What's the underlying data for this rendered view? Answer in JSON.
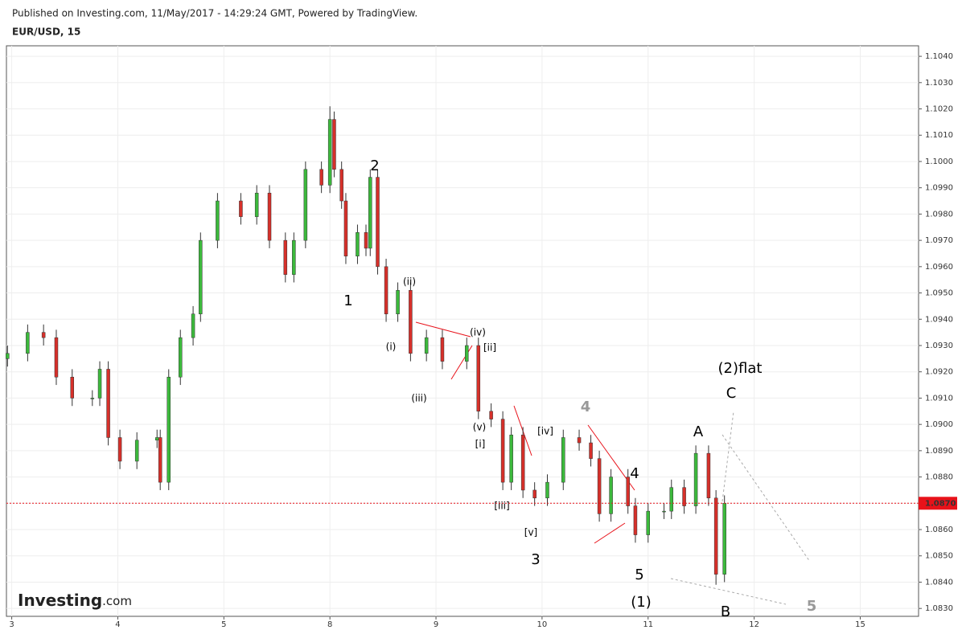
{
  "chart_data": {
    "type": "candlestick",
    "header": "Published on Investing.com, 11/May/2017 - 14:29:24 GMT, Powered by TradingView.",
    "title": "EUR/USD, 15",
    "logo": "Investing",
    "logo_suffix": ".com",
    "up_color": "#3cb93c",
    "down_color": "#d6302a",
    "wick_color": "#333333",
    "grid": true,
    "xlim": [
      -0.05,
      8.55
    ],
    "xticks": [
      {
        "value": 0,
        "label": "3"
      },
      {
        "value": 1,
        "label": "4"
      },
      {
        "value": 2,
        "label": "5"
      },
      {
        "value": 3,
        "label": "8"
      },
      {
        "value": 4,
        "label": "9"
      },
      {
        "value": 5,
        "label": "10"
      },
      {
        "value": 6,
        "label": "11"
      },
      {
        "value": 7,
        "label": "12"
      },
      {
        "value": 8,
        "label": "15"
      }
    ],
    "ylim": [
      1.0827,
      1.1044
    ],
    "yticks": [
      {
        "value": 1.083,
        "label": "1.0830"
      },
      {
        "value": 1.084,
        "label": "1.0840"
      },
      {
        "value": 1.085,
        "label": "1.0850"
      },
      {
        "value": 1.086,
        "label": "1.0860"
      },
      {
        "value": 1.087,
        "label": "1.0870"
      },
      {
        "value": 1.088,
        "label": "1.0880"
      },
      {
        "value": 1.089,
        "label": "1.0890"
      },
      {
        "value": 1.09,
        "label": "1.0900"
      },
      {
        "value": 1.091,
        "label": "1.0910"
      },
      {
        "value": 1.092,
        "label": "1.0920"
      },
      {
        "value": 1.093,
        "label": "1.0930"
      },
      {
        "value": 1.094,
        "label": "1.0940"
      },
      {
        "value": 1.095,
        "label": "1.0950"
      },
      {
        "value": 1.096,
        "label": "1.0960"
      },
      {
        "value": 1.097,
        "label": "1.0970"
      },
      {
        "value": 1.098,
        "label": "1.0980"
      },
      {
        "value": 1.099,
        "label": "1.0990"
      },
      {
        "value": 1.1,
        "label": "1.1000"
      },
      {
        "value": 1.101,
        "label": "1.1010"
      },
      {
        "value": 1.102,
        "label": "1.1020"
      },
      {
        "value": 1.103,
        "label": "1.1030"
      },
      {
        "value": 1.104,
        "label": "1.1040"
      }
    ],
    "last_price": {
      "value": 1.087,
      "label": "1.0870",
      "color": "#e8121a"
    },
    "candles": {
      "x": [
        -0.04,
        0.15,
        0.3,
        0.42,
        0.57,
        0.76,
        0.83,
        0.91,
        1.02,
        1.18,
        1.37,
        1.4,
        1.48,
        1.59,
        1.71,
        1.78,
        1.94,
        2.16,
        2.31,
        2.43,
        2.58,
        2.66,
        2.77,
        2.92,
        3.0,
        3.04,
        3.11,
        3.15,
        3.26,
        3.34,
        3.38,
        3.45,
        3.53,
        3.64,
        3.76,
        3.91,
        4.06,
        4.29,
        4.4,
        4.52,
        4.63,
        4.71,
        4.82,
        4.93,
        5.05,
        5.2,
        5.35,
        5.46,
        5.54,
        5.65,
        5.81,
        5.88,
        6.0,
        6.15,
        6.22,
        6.34,
        6.45,
        6.57,
        6.64,
        6.72
      ],
      "open": [
        1.0925,
        1.0927,
        1.0935,
        1.0933,
        1.0918,
        1.091,
        1.091,
        1.0921,
        1.0895,
        1.0886,
        1.0894,
        1.0895,
        1.0878,
        1.0918,
        1.0933,
        1.0942,
        1.097,
        1.0985,
        1.0979,
        1.0988,
        1.097,
        1.0957,
        1.097,
        1.0997,
        1.0991,
        1.1016,
        1.0997,
        1.0985,
        1.0964,
        1.0973,
        1.0967,
        1.0994,
        1.096,
        1.0942,
        1.0951,
        1.0927,
        1.0933,
        1.0924,
        1.093,
        1.0905,
        1.0902,
        1.0878,
        1.0896,
        1.0875,
        1.0872,
        1.0878,
        1.0895,
        1.0893,
        1.0887,
        1.0866,
        1.088,
        1.0869,
        1.0858,
        1.0867,
        1.0867,
        1.0876,
        1.0869,
        1.0889,
        1.0872,
        1.0843
      ],
      "high": [
        1.093,
        1.0938,
        1.0938,
        1.0936,
        1.0921,
        1.0913,
        1.0924,
        1.0924,
        1.0898,
        1.0897,
        1.0898,
        1.0898,
        1.0921,
        1.0936,
        1.0945,
        1.0973,
        1.0988,
        1.0988,
        1.0991,
        1.0991,
        1.0973,
        1.0973,
        1.1,
        1.1,
        1.1021,
        1.1019,
        1.1,
        1.0988,
        1.0976,
        1.0976,
        1.0997,
        1.0997,
        1.0963,
        1.0954,
        1.0954,
        1.0936,
        1.0936,
        1.0933,
        1.0933,
        1.0908,
        1.0905,
        1.0899,
        1.0899,
        1.0878,
        1.0881,
        1.0898,
        1.0898,
        1.0896,
        1.089,
        1.0883,
        1.0883,
        1.0872,
        1.087,
        1.087,
        1.0879,
        1.0879,
        1.0892,
        1.0892,
        1.0875,
        1.0873
      ],
      "low": [
        1.0922,
        1.0924,
        1.093,
        1.0915,
        1.0907,
        1.0907,
        1.0907,
        1.0892,
        1.0883,
        1.0883,
        1.0891,
        1.0875,
        1.0875,
        1.0915,
        1.093,
        1.0939,
        1.0967,
        1.0976,
        1.0976,
        1.0967,
        1.0954,
        1.0954,
        1.0967,
        1.0988,
        1.0988,
        1.0994,
        1.0982,
        1.0961,
        1.0961,
        1.0964,
        1.0964,
        1.0957,
        1.0939,
        1.0939,
        1.0924,
        1.0924,
        1.0921,
        1.0921,
        1.0902,
        1.0899,
        1.0875,
        1.0875,
        1.0872,
        1.0869,
        1.0869,
        1.0875,
        1.089,
        1.0884,
        1.0863,
        1.0863,
        1.0866,
        1.0855,
        1.0855,
        1.0864,
        1.0864,
        1.0866,
        1.0866,
        1.0869,
        1.0839,
        1.084
      ],
      "close": [
        1.0927,
        1.0935,
        1.0933,
        1.0918,
        1.091,
        1.091,
        1.0921,
        1.0895,
        1.0886,
        1.0894,
        1.0895,
        1.0878,
        1.0918,
        1.0933,
        1.0942,
        1.097,
        1.0985,
        1.0979,
        1.0988,
        1.097,
        1.0957,
        1.097,
        1.0997,
        1.0991,
        1.1016,
        1.0997,
        1.0985,
        1.0964,
        1.0973,
        1.0967,
        1.0994,
        1.096,
        1.0942,
        1.0951,
        1.0927,
        1.0933,
        1.0924,
        1.093,
        1.0905,
        1.0902,
        1.0878,
        1.0896,
        1.0875,
        1.0872,
        1.0878,
        1.0895,
        1.0893,
        1.0887,
        1.0866,
        1.088,
        1.0869,
        1.0858,
        1.0867,
        1.0867,
        1.0876,
        1.0869,
        1.0889,
        1.0872,
        1.0843,
        1.087
      ]
    },
    "annotations": [
      "2",
      "1",
      "(ii)",
      "(i)",
      "(iii)",
      "(iv)",
      "[ii]",
      "(v)",
      "[i]",
      "[iv]",
      "[iii]",
      "[v]",
      "3",
      "4",
      "4",
      "5",
      "(1)",
      "A",
      "(2)flat",
      "C",
      "B",
      "5"
    ]
  }
}
